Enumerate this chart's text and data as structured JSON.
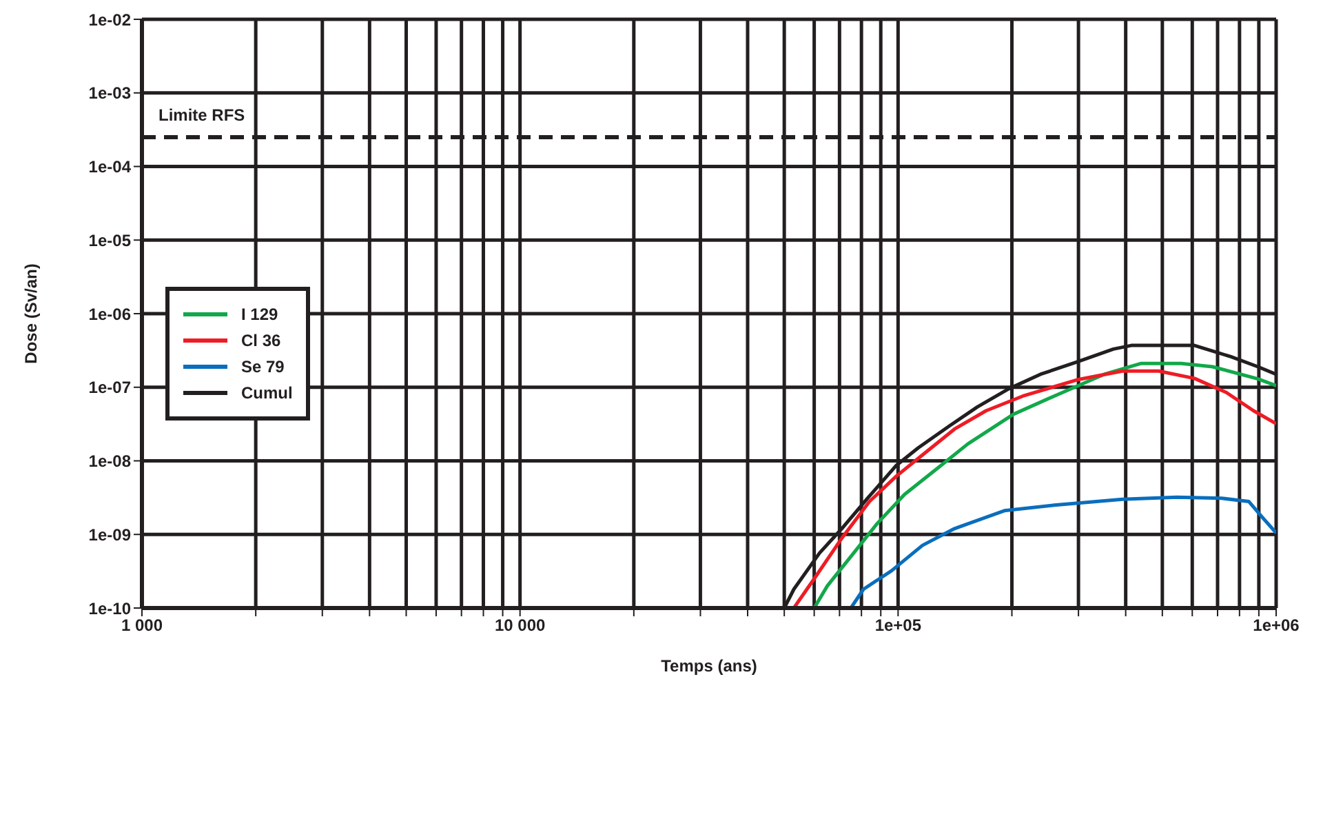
{
  "chart_data": {
    "type": "line",
    "xlabel": "Temps (ans)",
    "ylabel": "Dose (Sv/an)",
    "log": "xy",
    "grid": true,
    "legend": "left",
    "marker": "none",
    "line_style": "solid",
    "xlim": [
      1000,
      1000000
    ],
    "xticks": [
      {
        "value": 1000,
        "label": "1 000"
      },
      {
        "value": 2000,
        "label": null
      },
      {
        "value": 3000,
        "label": null
      },
      {
        "value": 4000,
        "label": null
      },
      {
        "value": 5000,
        "label": null
      },
      {
        "value": 6000,
        "label": null
      },
      {
        "value": 7000,
        "label": null
      },
      {
        "value": 8000,
        "label": null
      },
      {
        "value": 9000,
        "label": null
      },
      {
        "value": 10000,
        "label": "10 000"
      },
      {
        "value": 20000,
        "label": null
      },
      {
        "value": 30000,
        "label": null
      },
      {
        "value": 40000,
        "label": null
      },
      {
        "value": 50000,
        "label": null
      },
      {
        "value": 60000,
        "label": null
      },
      {
        "value": 70000,
        "label": null
      },
      {
        "value": 80000,
        "label": null
      },
      {
        "value": 90000,
        "label": null
      },
      {
        "value": 100000,
        "label": "1e+05"
      },
      {
        "value": 200000,
        "label": null
      },
      {
        "value": 300000,
        "label": null
      },
      {
        "value": 400000,
        "label": null
      },
      {
        "value": 500000,
        "label": null
      },
      {
        "value": 600000,
        "label": null
      },
      {
        "value": 700000,
        "label": null
      },
      {
        "value": 800000,
        "label": null
      },
      {
        "value": 900000,
        "label": null
      },
      {
        "value": 1000000,
        "label": "1e+06"
      }
    ],
    "ylim": [
      1e-10,
      0.01
    ],
    "yticks": [
      {
        "value": 0.01,
        "label": "1e-02"
      },
      {
        "value": 0.001,
        "label": "1e-03"
      },
      {
        "value": 0.0001,
        "label": "1e-04"
      },
      {
        "value": 1e-05,
        "label": "1e-05"
      },
      {
        "value": 1e-06,
        "label": "1e-06"
      },
      {
        "value": 1e-07,
        "label": "1e-07"
      },
      {
        "value": 1e-08,
        "label": "1e-08"
      },
      {
        "value": 1e-09,
        "label": "1e-09"
      },
      {
        "value": 1e-10,
        "label": "1e-10"
      }
    ],
    "ref_lines": [
      {
        "axis": "y",
        "value": 0.00025,
        "label": "Limite RFS",
        "color": "#231f20",
        "line_style": "dashed"
      }
    ],
    "series": [
      {
        "name": "I 129",
        "color": "#12a84a",
        "x": [
          60000,
          65000,
          75000,
          88000,
          104000,
          130000,
          153000,
          202000,
          259000,
          351000,
          438000,
          561000,
          679000,
          895000,
          1000000
        ],
        "values": [
          1e-10,
          2e-10,
          5e-10,
          1.4e-09,
          3.5e-09,
          8.7e-09,
          1.7e-08,
          4.3e-08,
          7.6e-08,
          1.5e-07,
          2.1e-07,
          2.1e-07,
          1.9e-07,
          1.3e-07,
          1.05e-07
        ]
      },
      {
        "name": "Cl 36",
        "color": "#ee1c25",
        "x": [
          53000,
          60000,
          71000,
          84000,
          99000,
          116000,
          141000,
          171000,
          214000,
          297000,
          392000,
          489000,
          608000,
          738000,
          871000,
          1000000
        ],
        "values": [
          1e-10,
          2.5e-10,
          8.9e-10,
          2.8e-09,
          6.2e-09,
          1.2e-08,
          2.7e-08,
          4.8e-08,
          7.6e-08,
          1.26e-07,
          1.66e-07,
          1.66e-07,
          1.32e-07,
          8.5e-08,
          4.8e-08,
          3.2e-08
        ]
      },
      {
        "name": "Se 79",
        "color": "#0a6ebd",
        "x": [
          75000,
          81000,
          96000,
          116000,
          141000,
          191000,
          259000,
          392000,
          546000,
          718000,
          847000,
          920000,
          1000000
        ],
        "values": [
          1e-10,
          1.8e-10,
          3.2e-10,
          7.1e-10,
          1.2e-09,
          2.1e-09,
          2.5e-09,
          3e-09,
          3.2e-09,
          3.1e-09,
          2.8e-09,
          1.7e-09,
          1.05e-09
        ]
      },
      {
        "name": "Cumul",
        "color": "#231f20",
        "x": [
          50000,
          53000,
          62000,
          71000,
          83000,
          99000,
          113000,
          137000,
          162000,
          196000,
          238000,
          297000,
          371000,
          414000,
          608000,
          759000,
          895000,
          1000000
        ],
        "values": [
          1e-10,
          1.8e-10,
          5.6e-10,
          1.2e-09,
          3.1e-09,
          8.7e-09,
          1.5e-08,
          3e-08,
          5.4e-08,
          9.5e-08,
          1.5e-07,
          2.2e-07,
          3.3e-07,
          3.7e-07,
          3.7e-07,
          2.6e-07,
          1.9e-07,
          1.5e-07
        ]
      }
    ]
  }
}
